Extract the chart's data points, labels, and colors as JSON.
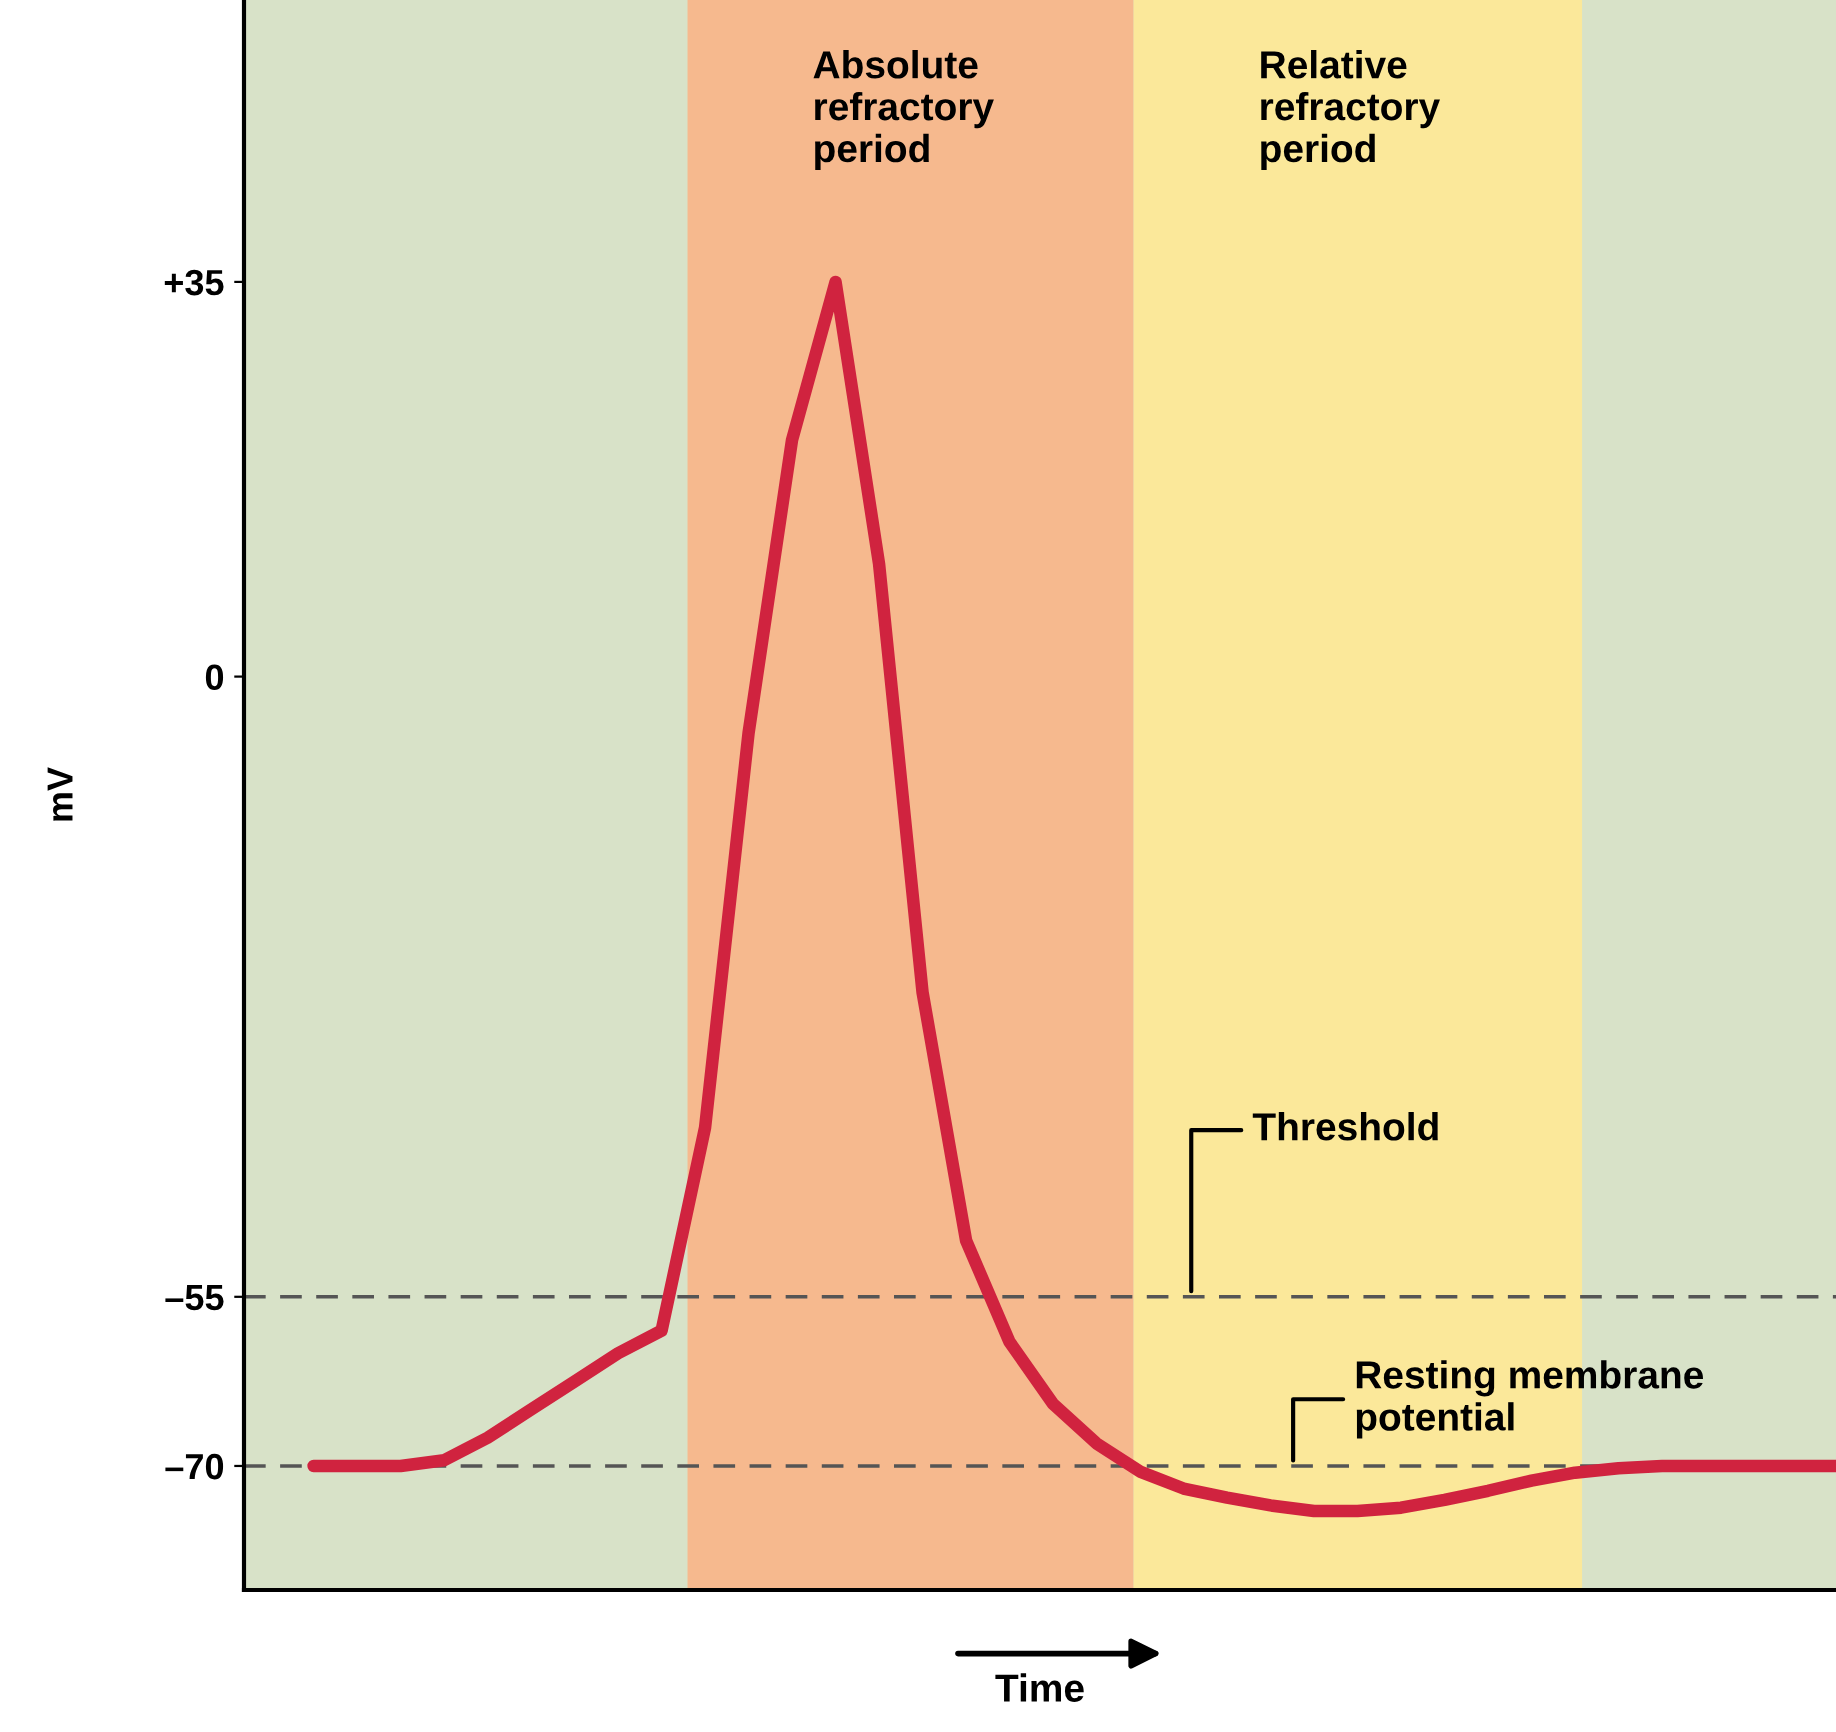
{
  "chart_data": {
    "type": "line",
    "xlabel": "Time",
    "ylabel": "mV",
    "ylim": [
      -81,
      60
    ],
    "categories": [
      null,
      null,
      null,
      null,
      null,
      null,
      null,
      null,
      null,
      null,
      null,
      null,
      null,
      null,
      null,
      null,
      null,
      null,
      null,
      null,
      null,
      null,
      null,
      null,
      null,
      null,
      null,
      null,
      null,
      null,
      null,
      null,
      null,
      null,
      null,
      null
    ],
    "yticks": [
      {
        "value": 35,
        "label": "+35"
      },
      {
        "value": 0,
        "label": "0"
      },
      {
        "value": -55,
        "label": "–55"
      },
      {
        "value": -70,
        "label": "–70"
      }
    ],
    "tick_labels": "y",
    "grid": false,
    "legend": false,
    "marker": "none",
    "line_style": "solid",
    "series": [
      {
        "color": "#d0233f",
        "values": [
          -70,
          -70,
          -70,
          -69.5,
          -67.5,
          -65,
          -62.5,
          -60,
          -58,
          -40,
          -5,
          21,
          35,
          10,
          -28,
          -50,
          -59,
          -64.5,
          -68,
          -70.5,
          -72,
          -72.8,
          -73.5,
          -74,
          -74,
          -73.7,
          -73,
          -72.2,
          -71.3,
          -70.6,
          -70.2,
          -70,
          -70,
          -70,
          -70,
          -70
        ]
      }
    ],
    "annotations": [
      "Absolute\nrefractory\nperiod",
      "Relative\nrefractory\nperiod"
    ],
    "ref_lines": [
      {
        "axis": "y",
        "value": -55,
        "label": "Threshold",
        "line_style": "dashed",
        "color": "#555555"
      },
      {
        "axis": "y",
        "value": -70,
        "label": "Resting membrane\npotential",
        "line_style": "dashed",
        "color": "#555555"
      }
    ]
  }
}
